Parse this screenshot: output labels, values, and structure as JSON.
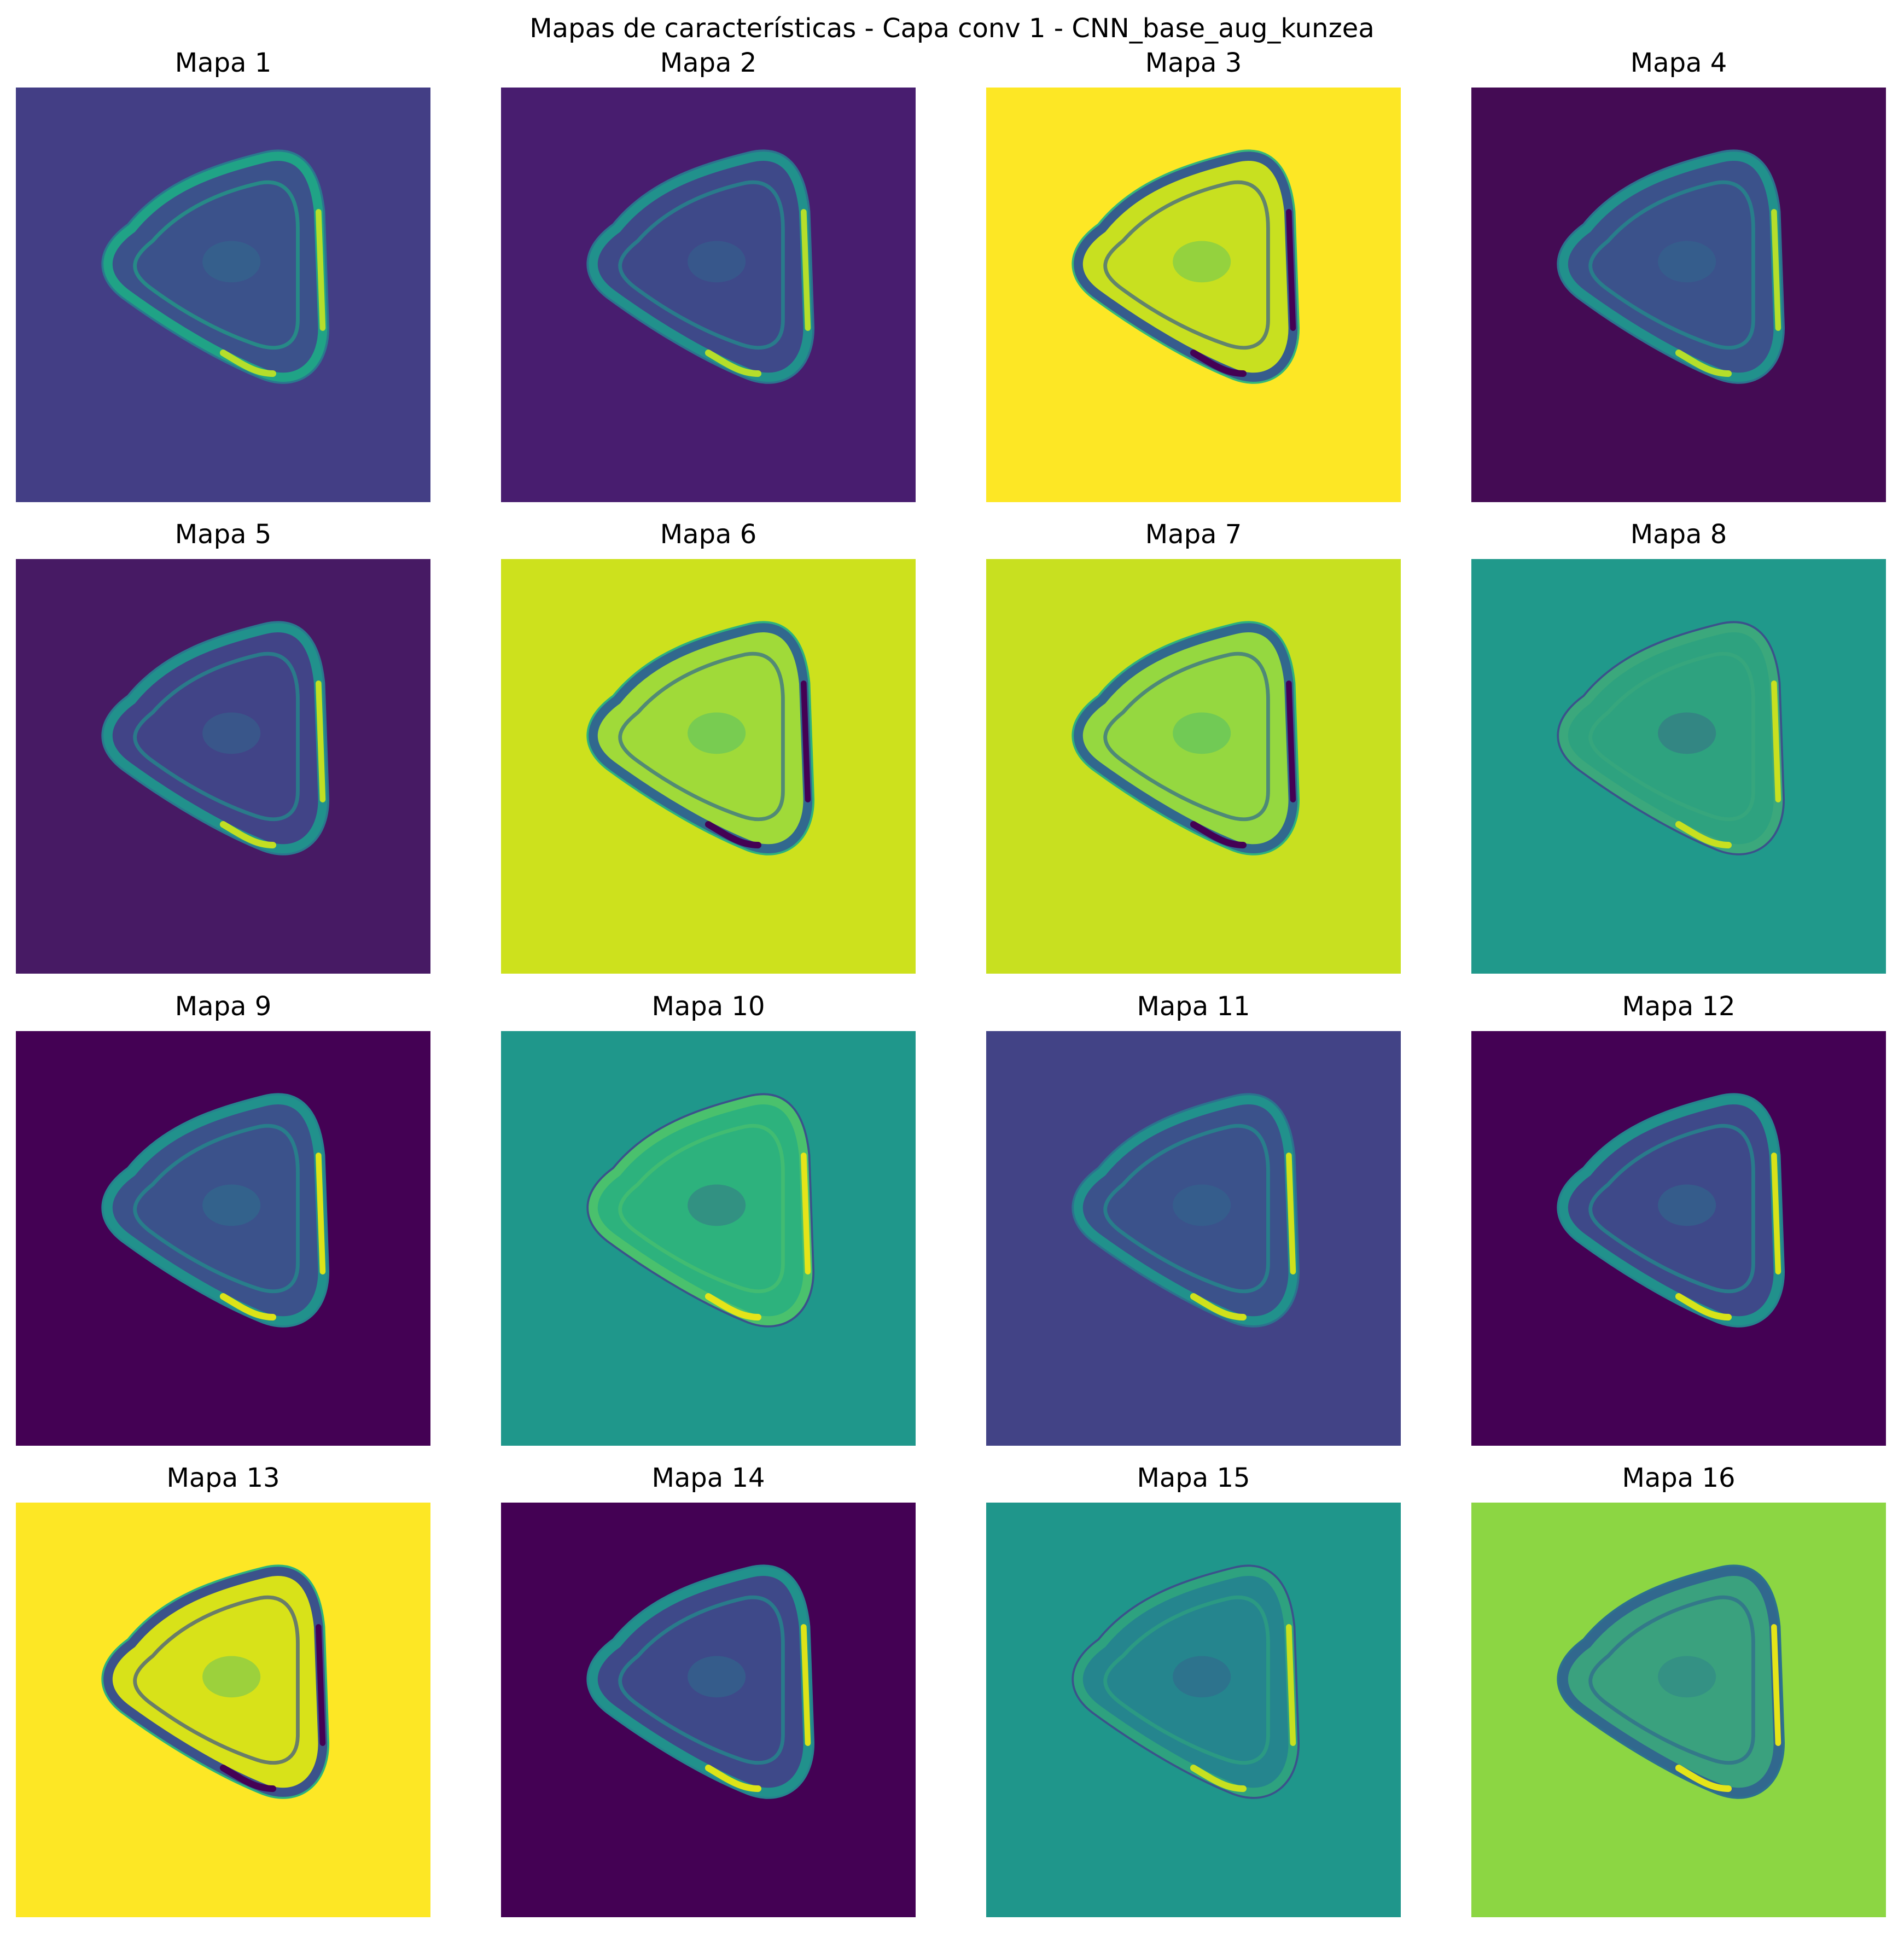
{
  "title": "Mapas de características - Capa conv 1 - CNN_base_aug_kunzea",
  "maps": [
    {
      "label": "Mapa 1",
      "bg": "#433e85",
      "ring": "#20a386",
      "ring_hi": "#b5de2b",
      "inner": "#3b528b",
      "edge": "#2a788e"
    },
    {
      "label": "Mapa 2",
      "bg": "#481d6f",
      "ring": "#21918c",
      "ring_hi": "#b5de2b",
      "inner": "#3e4989",
      "edge": "#2c728e"
    },
    {
      "label": "Mapa 3",
      "bg": "#fde725",
      "ring": "#365c8d",
      "ring_hi": "#440154",
      "inner": "#c8e020",
      "edge": "#35b779"
    },
    {
      "label": "Mapa 4",
      "bg": "#440b54",
      "ring": "#21918c",
      "ring_hi": "#b5de2b",
      "inner": "#3b528b",
      "edge": "#2c728e"
    },
    {
      "label": "Mapa 5",
      "bg": "#471a64",
      "ring": "#21918c",
      "ring_hi": "#c2df23",
      "inner": "#414487",
      "edge": "#2a788e"
    },
    {
      "label": "Mapa 6",
      "bg": "#cde11d",
      "ring": "#31688e",
      "ring_hi": "#440154",
      "inner": "#a0da39",
      "edge": "#2db27d"
    },
    {
      "label": "Mapa 7",
      "bg": "#c8e020",
      "ring": "#31688e",
      "ring_hi": "#440154",
      "inner": "#95d840",
      "edge": "#2db27d"
    },
    {
      "label": "Mapa 8",
      "bg": "#20998b",
      "ring": "#3ba87c",
      "ring_hi": "#c8e020",
      "inner": "#2ea27f",
      "edge": "#3b528b"
    },
    {
      "label": "Mapa 9",
      "bg": "#440154",
      "ring": "#21918c",
      "ring_hi": "#dde318",
      "inner": "#3b528b",
      "edge": "#26828e"
    },
    {
      "label": "Mapa 10",
      "bg": "#1f978b",
      "ring": "#4ac16d",
      "ring_hi": "#e5e419",
      "inner": "#2db27d",
      "edge": "#3b528b"
    },
    {
      "label": "Mapa 11",
      "bg": "#424386",
      "ring": "#21918c",
      "ring_hi": "#d0e11c",
      "inner": "#3b528b",
      "edge": "#2c728e"
    },
    {
      "label": "Mapa 12",
      "bg": "#440154",
      "ring": "#21918c",
      "ring_hi": "#d8e219",
      "inner": "#3e4989",
      "edge": "#26828e"
    },
    {
      "label": "Mapa 13",
      "bg": "#fde725",
      "ring": "#3b528b",
      "ring_hi": "#440154",
      "inner": "#d8e219",
      "edge": "#2db27d"
    },
    {
      "label": "Mapa 14",
      "bg": "#440154",
      "ring": "#21918c",
      "ring_hi": "#dde318",
      "inner": "#3e4989",
      "edge": "#26828e"
    },
    {
      "label": "Mapa 15",
      "bg": "#1f968b",
      "ring": "#2ea27f",
      "ring_hi": "#c8e020",
      "inner": "#25858e",
      "edge": "#3b528b"
    },
    {
      "label": "Mapa 16",
      "bg": "#8cd643",
      "ring": "#31688e",
      "ring_hi": "#e5e419",
      "inner": "#3aa17e",
      "edge": "#2c728e"
    }
  ]
}
